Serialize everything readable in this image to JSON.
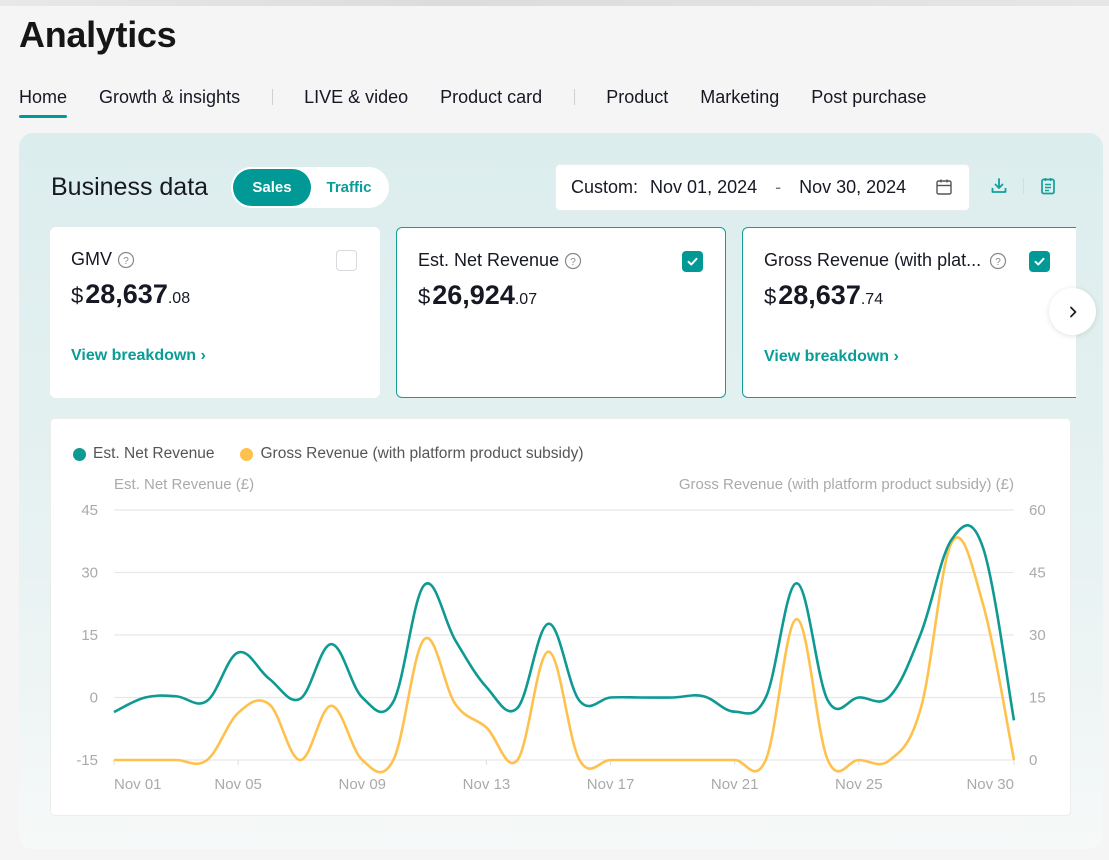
{
  "page": {
    "title": "Analytics"
  },
  "tabs": [
    {
      "label": "Home",
      "active": true
    },
    {
      "label": "Growth & insights"
    },
    {
      "label": "LIVE & video"
    },
    {
      "label": "Product card"
    },
    {
      "label": "Product"
    },
    {
      "label": "Marketing"
    },
    {
      "label": "Post purchase"
    }
  ],
  "business": {
    "title": "Business data",
    "toggle": {
      "options": [
        "Sales",
        "Traffic"
      ],
      "selected": "Sales"
    },
    "date_range": {
      "label": "Custom:",
      "start": "Nov 01, 2024",
      "separator": "-",
      "end": "Nov 30, 2024"
    },
    "icons": {
      "download": "download-icon",
      "report": "report-icon",
      "calendar": "calendar-icon"
    }
  },
  "cards": [
    {
      "title": "GMV",
      "currency": "$",
      "int": "28,637",
      "dec": ".08",
      "checked": false,
      "link": "View breakdown ›"
    },
    {
      "title": "Est. Net Revenue",
      "currency": "$",
      "int": "26,924",
      "dec": ".07",
      "checked": true,
      "link": ""
    },
    {
      "title": "Gross Revenue (with plat...",
      "currency": "$",
      "int": "28,637",
      "dec": ".74",
      "checked": true,
      "link": "View breakdown ›"
    }
  ],
  "colors": {
    "accent": "#009995",
    "series_net": "#0e9a93",
    "series_gross": "#ffc14d"
  },
  "chart_data": {
    "type": "line",
    "title": "",
    "legend": [
      "Est. Net Revenue",
      "Gross Revenue (with platform product subsidy)"
    ],
    "legend_position": "top-left",
    "y_left_label": "Est. Net Revenue (£)",
    "y_right_label": "Gross Revenue (with platform product subsidy) (£)",
    "y_left_ticks": [
      "45",
      "30",
      "15",
      "0",
      "-15"
    ],
    "y_right_ticks": [
      "60",
      "45",
      "30",
      "15",
      "0"
    ],
    "y_left_range": [
      -15,
      45
    ],
    "y_right_range": [
      0,
      60
    ],
    "x_tick_labels": [
      "Nov 01",
      "Nov 05",
      "Nov 09",
      "Nov 13",
      "Nov 17",
      "Nov 21",
      "Nov 25",
      "Nov 30"
    ],
    "x_tick_days": [
      1,
      5,
      9,
      13,
      17,
      21,
      25,
      30
    ],
    "x": [
      1,
      2,
      3,
      4,
      5,
      6,
      7,
      8,
      9,
      10,
      11,
      12,
      13,
      14,
      15,
      16,
      17,
      18,
      19,
      20,
      21,
      22,
      23,
      24,
      25,
      26,
      27,
      28,
      29,
      30
    ],
    "grid": true,
    "series": [
      {
        "name": "Est. Net Revenue",
        "axis": "left",
        "values": [
          -3.5,
          0,
          0.3,
          -0.8,
          10.8,
          4.5,
          -0.3,
          12.8,
          0,
          -1,
          27,
          13.7,
          2.5,
          -2.5,
          17.7,
          -0.8,
          0,
          0,
          0,
          0.3,
          -3.4,
          0,
          27.4,
          -0.7,
          0,
          0.3,
          15.4,
          38,
          36,
          -5.5
        ]
      },
      {
        "name": "Gross Revenue (with platform product subsidy)",
        "axis": "right",
        "values": [
          0,
          0,
          0,
          0,
          11.3,
          13.4,
          0,
          13,
          0,
          0,
          29,
          13.4,
          7.8,
          0,
          26,
          0,
          0,
          0,
          0,
          0,
          0,
          0,
          33.8,
          0,
          0,
          0,
          12.5,
          52.3,
          37.4,
          0
        ]
      }
    ]
  }
}
